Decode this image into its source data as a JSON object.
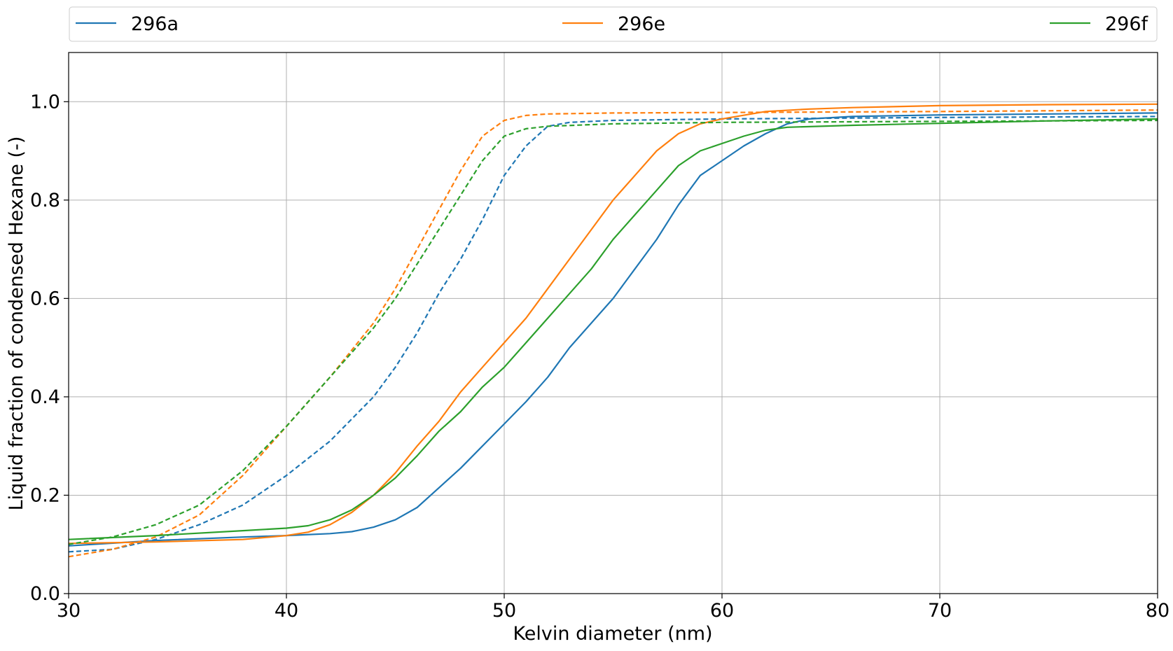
{
  "chart_data": {
    "type": "line",
    "title": "",
    "xlabel": "Kelvin diameter (nm)",
    "ylabel": "Liquid fraction of condensed Hexane (-)",
    "xlim": [
      30,
      80
    ],
    "ylim": [
      0.0,
      1.1
    ],
    "grid": true,
    "legend_position": "top",
    "xticks": [
      30,
      40,
      50,
      60,
      70,
      80
    ],
    "xtick_labels": [
      "30",
      "40",
      "50",
      "60",
      "70",
      "80"
    ],
    "yticks": [
      0.0,
      0.2,
      0.4,
      0.6,
      0.8,
      1.0
    ],
    "ytick_labels": [
      "0.0",
      "0.2",
      "0.4",
      "0.6",
      "0.8",
      "1.0"
    ],
    "series": [
      {
        "name": "296a",
        "color": "#1f77b4",
        "style": "solid",
        "x": [
          30,
          34,
          38,
          40,
          42,
          43,
          44,
          45,
          46,
          47,
          48,
          49,
          50,
          51,
          52,
          53,
          54,
          55,
          56,
          57,
          58,
          59,
          60,
          61,
          62,
          63,
          64,
          66,
          70,
          75,
          80
        ],
        "y": [
          0.097,
          0.108,
          0.115,
          0.118,
          0.122,
          0.126,
          0.135,
          0.15,
          0.175,
          0.215,
          0.255,
          0.3,
          0.345,
          0.39,
          0.44,
          0.5,
          0.55,
          0.6,
          0.66,
          0.72,
          0.79,
          0.85,
          0.88,
          0.91,
          0.935,
          0.955,
          0.965,
          0.97,
          0.973,
          0.975,
          0.977
        ]
      },
      {
        "name": "296a",
        "color": "#1f77b4",
        "style": "dashed",
        "x": [
          30,
          32,
          34,
          36,
          38,
          40,
          42,
          44,
          45,
          46,
          47,
          48,
          49,
          50,
          51,
          52,
          53,
          55,
          60,
          70,
          80
        ],
        "y": [
          0.085,
          0.09,
          0.11,
          0.14,
          0.18,
          0.24,
          0.31,
          0.4,
          0.46,
          0.53,
          0.61,
          0.68,
          0.76,
          0.85,
          0.91,
          0.95,
          0.958,
          0.962,
          0.965,
          0.968,
          0.97
        ]
      },
      {
        "name": "296e",
        "color": "#ff7f0e",
        "style": "solid",
        "x": [
          30,
          34,
          38,
          40,
          41,
          42,
          43,
          44,
          45,
          46,
          47,
          48,
          49,
          50,
          51,
          52,
          53,
          54,
          55,
          56,
          57,
          58,
          59,
          60,
          62,
          64,
          66,
          70,
          75,
          80
        ],
        "y": [
          0.102,
          0.105,
          0.11,
          0.118,
          0.125,
          0.14,
          0.165,
          0.2,
          0.245,
          0.3,
          0.35,
          0.41,
          0.46,
          0.51,
          0.56,
          0.62,
          0.68,
          0.74,
          0.8,
          0.85,
          0.9,
          0.935,
          0.955,
          0.965,
          0.98,
          0.985,
          0.988,
          0.992,
          0.994,
          0.995
        ]
      },
      {
        "name": "296e",
        "color": "#ff7f0e",
        "style": "dashed",
        "x": [
          30,
          32,
          34,
          36,
          38,
          40,
          42,
          44,
          45,
          46,
          47,
          48,
          49,
          50,
          51,
          52,
          55,
          60,
          70,
          80
        ],
        "y": [
          0.075,
          0.09,
          0.115,
          0.16,
          0.24,
          0.34,
          0.44,
          0.55,
          0.62,
          0.7,
          0.78,
          0.86,
          0.93,
          0.962,
          0.972,
          0.975,
          0.977,
          0.978,
          0.98,
          0.983
        ]
      },
      {
        "name": "296f",
        "color": "#2ca02c",
        "style": "solid",
        "x": [
          30,
          34,
          38,
          40,
          41,
          42,
          43,
          44,
          45,
          46,
          47,
          48,
          49,
          50,
          51,
          52,
          53,
          54,
          55,
          56,
          57,
          58,
          59,
          60,
          61,
          62,
          63,
          66,
          70,
          75,
          80
        ],
        "y": [
          0.11,
          0.118,
          0.128,
          0.133,
          0.138,
          0.15,
          0.17,
          0.2,
          0.235,
          0.28,
          0.33,
          0.37,
          0.42,
          0.46,
          0.51,
          0.56,
          0.61,
          0.66,
          0.72,
          0.77,
          0.82,
          0.87,
          0.9,
          0.915,
          0.93,
          0.942,
          0.948,
          0.952,
          0.956,
          0.961,
          0.965
        ]
      },
      {
        "name": "296f",
        "color": "#2ca02c",
        "style": "dashed",
        "x": [
          30,
          32,
          34,
          36,
          38,
          40,
          42,
          44,
          45,
          46,
          47,
          48,
          49,
          50,
          51,
          52,
          55,
          60,
          70,
          80
        ],
        "y": [
          0.1,
          0.115,
          0.14,
          0.18,
          0.25,
          0.34,
          0.44,
          0.54,
          0.6,
          0.67,
          0.74,
          0.81,
          0.88,
          0.93,
          0.945,
          0.95,
          0.955,
          0.958,
          0.96,
          0.962
        ]
      }
    ],
    "legend": [
      {
        "name": "296a",
        "color": "#1f77b4"
      },
      {
        "name": "296e",
        "color": "#ff7f0e"
      },
      {
        "name": "296f",
        "color": "#2ca02c"
      }
    ]
  }
}
